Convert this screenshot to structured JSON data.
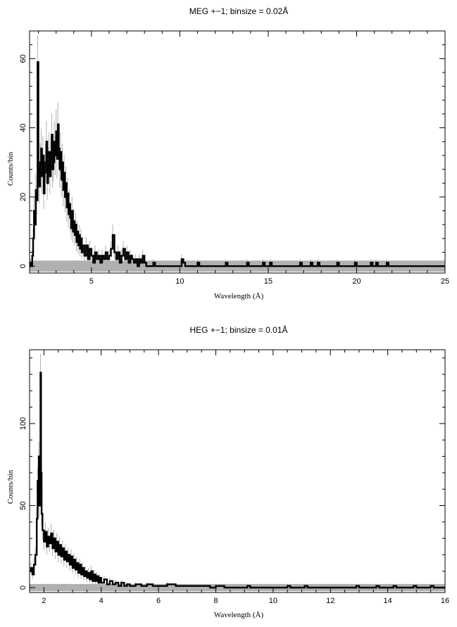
{
  "chart_data": [
    {
      "type": "line",
      "title": "MEG +−1; binsize = 0.02Å",
      "xlabel": "Wavelength (Å)",
      "ylabel": "Counts/bin",
      "xlim": [
        1.5,
        25
      ],
      "ylim": [
        -2,
        68
      ],
      "xticks": [
        5,
        10,
        15,
        20,
        25
      ],
      "yticks": [
        0,
        20,
        40,
        60
      ],
      "error_color": "#b0b0b0",
      "line_color": "#000000",
      "band": [
        -1.6,
        1.6
      ],
      "series": [
        {
          "values": [
            [
              1.5,
              0
            ],
            [
              1.55,
              1
            ],
            [
              1.6,
              0
            ],
            [
              1.65,
              3
            ],
            [
              1.7,
              8
            ],
            [
              1.75,
              16
            ],
            [
              1.8,
              12
            ],
            [
              1.85,
              22
            ],
            [
              1.9,
              19
            ],
            [
              1.95,
              59
            ],
            [
              2.0,
              28
            ],
            [
              2.05,
              23
            ],
            [
              2.1,
              30
            ],
            [
              2.15,
              34
            ],
            [
              2.2,
              26
            ],
            [
              2.25,
              32
            ],
            [
              2.3,
              21
            ],
            [
              2.35,
              27
            ],
            [
              2.4,
              30
            ],
            [
              2.45,
              36
            ],
            [
              2.5,
              24
            ],
            [
              2.55,
              29
            ],
            [
              2.6,
              33
            ],
            [
              2.65,
              26
            ],
            [
              2.7,
              31
            ],
            [
              2.75,
              38
            ],
            [
              2.8,
              28
            ],
            [
              2.85,
              30
            ],
            [
              2.9,
              36
            ],
            [
              2.95,
              32
            ],
            [
              3.0,
              39
            ],
            [
              3.05,
              31
            ],
            [
              3.1,
              41
            ],
            [
              3.15,
              34
            ],
            [
              3.2,
              28
            ],
            [
              3.25,
              33
            ],
            [
              3.3,
              25
            ],
            [
              3.35,
              30
            ],
            [
              3.4,
              22
            ],
            [
              3.45,
              27
            ],
            [
              3.5,
              20
            ],
            [
              3.55,
              24
            ],
            [
              3.6,
              17
            ],
            [
              3.65,
              21
            ],
            [
              3.7,
              15
            ],
            [
              3.75,
              18
            ],
            [
              3.8,
              14
            ],
            [
              3.85,
              11
            ],
            [
              3.9,
              16
            ],
            [
              3.95,
              10
            ],
            [
              4.0,
              13
            ],
            [
              4.05,
              9
            ],
            [
              4.1,
              12
            ],
            [
              4.15,
              7
            ],
            [
              4.2,
              10
            ],
            [
              4.25,
              6
            ],
            [
              4.3,
              9
            ],
            [
              4.35,
              5
            ],
            [
              4.4,
              8
            ],
            [
              4.45,
              4
            ],
            [
              4.5,
              6
            ],
            [
              4.6,
              3
            ],
            [
              4.7,
              6
            ],
            [
              4.8,
              2
            ],
            [
              4.9,
              5
            ],
            [
              5.0,
              3
            ],
            [
              5.1,
              1
            ],
            [
              5.2,
              4
            ],
            [
              5.3,
              2
            ],
            [
              5.4,
              3
            ],
            [
              5.5,
              1
            ],
            [
              5.6,
              3
            ],
            [
              5.7,
              2
            ],
            [
              5.8,
              4
            ],
            [
              5.9,
              2
            ],
            [
              6.0,
              3
            ],
            [
              6.1,
              5
            ],
            [
              6.2,
              9
            ],
            [
              6.3,
              4
            ],
            [
              6.4,
              2
            ],
            [
              6.5,
              4
            ],
            [
              6.6,
              1
            ],
            [
              6.7,
              3
            ],
            [
              6.8,
              5
            ],
            [
              6.9,
              2
            ],
            [
              7.0,
              4
            ],
            [
              7.1,
              1
            ],
            [
              7.2,
              3
            ],
            [
              7.3,
              2
            ],
            [
              7.4,
              1
            ],
            [
              7.5,
              2
            ],
            [
              7.6,
              0
            ],
            [
              7.7,
              2
            ],
            [
              7.8,
              1
            ],
            [
              7.9,
              3
            ],
            [
              8.0,
              1
            ],
            [
              8.1,
              0
            ],
            [
              8.5,
              1
            ],
            [
              8.6,
              0
            ],
            [
              10.1,
              2
            ],
            [
              10.2,
              1
            ],
            [
              10.3,
              0
            ],
            [
              11.0,
              1
            ],
            [
              11.1,
              0
            ],
            [
              12.6,
              1
            ],
            [
              12.7,
              0
            ],
            [
              13.8,
              1
            ],
            [
              13.9,
              0
            ],
            [
              14.7,
              1
            ],
            [
              14.8,
              0
            ],
            [
              15.1,
              1
            ],
            [
              15.2,
              0
            ],
            [
              16.8,
              1
            ],
            [
              16.9,
              0
            ],
            [
              17.4,
              1
            ],
            [
              17.5,
              0
            ],
            [
              17.8,
              1
            ],
            [
              17.9,
              0
            ],
            [
              18.9,
              1
            ],
            [
              19.0,
              0
            ],
            [
              19.9,
              1
            ],
            [
              20.0,
              0
            ],
            [
              20.8,
              1
            ],
            [
              20.9,
              0
            ],
            [
              21.1,
              1
            ],
            [
              21.2,
              0
            ],
            [
              21.7,
              1
            ],
            [
              21.8,
              0
            ],
            [
              25.0,
              0
            ]
          ]
        }
      ]
    },
    {
      "type": "line",
      "title": "HEG +−1; binsize = 0.01Å",
      "xlabel": "Wavelength (Å)",
      "ylabel": "Counts/bin",
      "xlim": [
        1.5,
        16
      ],
      "ylim": [
        -3,
        145
      ],
      "xticks": [
        2,
        4,
        6,
        8,
        10,
        12,
        14,
        16
      ],
      "yticks": [
        0,
        50,
        100
      ],
      "error_color": "#b0b0b0",
      "line_color": "#000000",
      "band": [
        -2.2,
        2.2
      ],
      "series": [
        {
          "values": [
            [
              1.5,
              10
            ],
            [
              1.55,
              12
            ],
            [
              1.6,
              8
            ],
            [
              1.65,
              14
            ],
            [
              1.7,
              20
            ],
            [
              1.75,
              42
            ],
            [
              1.78,
              65
            ],
            [
              1.8,
              55
            ],
            [
              1.82,
              80
            ],
            [
              1.84,
              50
            ],
            [
              1.86,
              60
            ],
            [
              1.88,
              131
            ],
            [
              1.9,
              70
            ],
            [
              1.92,
              45
            ],
            [
              1.95,
              35
            ],
            [
              2.0,
              28
            ],
            [
              2.05,
              34
            ],
            [
              2.1,
              25
            ],
            [
              2.15,
              31
            ],
            [
              2.2,
              27
            ],
            [
              2.25,
              33
            ],
            [
              2.3,
              24
            ],
            [
              2.35,
              30
            ],
            [
              2.4,
              22
            ],
            [
              2.45,
              28
            ],
            [
              2.5,
              20
            ],
            [
              2.55,
              26
            ],
            [
              2.6,
              19
            ],
            [
              2.65,
              24
            ],
            [
              2.7,
              17
            ],
            [
              2.75,
              22
            ],
            [
              2.8,
              16
            ],
            [
              2.85,
              20
            ],
            [
              2.9,
              14
            ],
            [
              2.95,
              19
            ],
            [
              3.0,
              12
            ],
            [
              3.05,
              17
            ],
            [
              3.1,
              11
            ],
            [
              3.15,
              15
            ],
            [
              3.2,
              9
            ],
            [
              3.25,
              14
            ],
            [
              3.3,
              8
            ],
            [
              3.35,
              12
            ],
            [
              3.4,
              7
            ],
            [
              3.45,
              10
            ],
            [
              3.5,
              6
            ],
            [
              3.55,
              9
            ],
            [
              3.6,
              5
            ],
            [
              3.65,
              10
            ],
            [
              3.7,
              4
            ],
            [
              3.75,
              8
            ],
            [
              3.8,
              4
            ],
            [
              3.85,
              7
            ],
            [
              3.9,
              3
            ],
            [
              3.95,
              6
            ],
            [
              4.0,
              3
            ],
            [
              4.1,
              5
            ],
            [
              4.2,
              2
            ],
            [
              4.3,
              4
            ],
            [
              4.4,
              2
            ],
            [
              4.5,
              3
            ],
            [
              4.6,
              1
            ],
            [
              4.7,
              3
            ],
            [
              4.8,
              1
            ],
            [
              4.9,
              2
            ],
            [
              5.0,
              1
            ],
            [
              5.2,
              2
            ],
            [
              5.4,
              1
            ],
            [
              5.6,
              2
            ],
            [
              5.8,
              1
            ],
            [
              6.0,
              1
            ],
            [
              6.3,
              2
            ],
            [
              6.6,
              1
            ],
            [
              7.0,
              1
            ],
            [
              7.4,
              1
            ],
            [
              7.8,
              0
            ],
            [
              8.0,
              1
            ],
            [
              8.3,
              0
            ],
            [
              9.1,
              1
            ],
            [
              9.2,
              0
            ],
            [
              10.5,
              1
            ],
            [
              10.6,
              0
            ],
            [
              11.1,
              1
            ],
            [
              11.2,
              0
            ],
            [
              12.9,
              1
            ],
            [
              13.0,
              0
            ],
            [
              13.6,
              1
            ],
            [
              13.7,
              0
            ],
            [
              14.2,
              1
            ],
            [
              14.3,
              0
            ],
            [
              14.9,
              1
            ],
            [
              15.0,
              0
            ],
            [
              15.5,
              1
            ],
            [
              15.6,
              0
            ],
            [
              16.0,
              0
            ]
          ]
        }
      ]
    }
  ]
}
